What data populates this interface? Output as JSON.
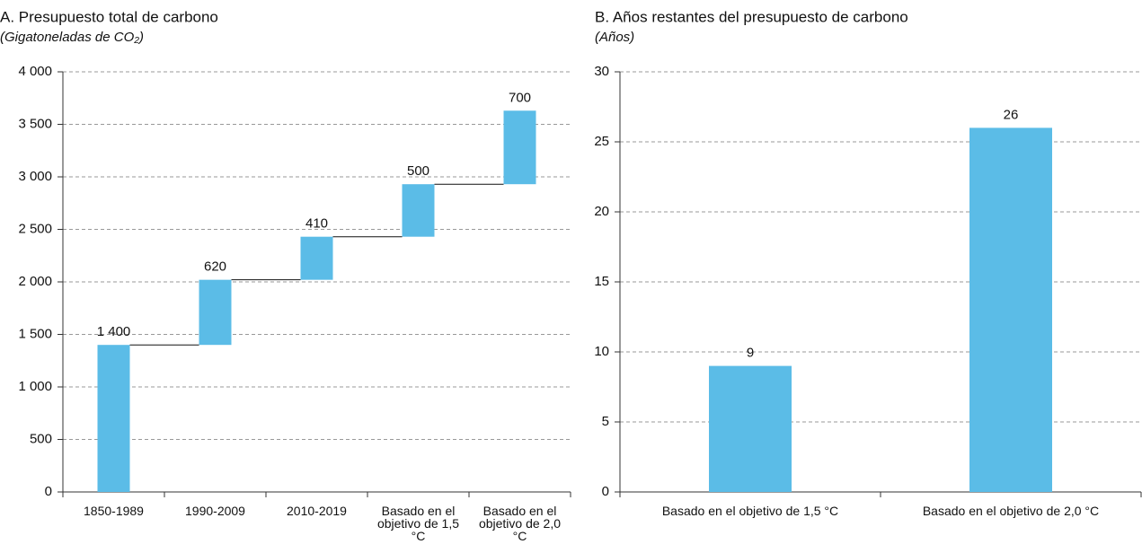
{
  "chart_data": [
    {
      "type": "waterfall",
      "title": "A. Presupuesto total de carbono",
      "subtitle": "(Gigatoneladas de CO₂)",
      "categories": [
        "1850-1989",
        "1990-2009",
        "2010-2019",
        "Basado en el objetivo de 1,5 °C",
        "Basado en el objetivo de 2,0 °C"
      ],
      "values": [
        1400,
        620,
        410,
        500,
        700
      ],
      "value_labels": [
        "1 400",
        "620",
        "410",
        "500",
        "700"
      ],
      "color": "#5bbce7",
      "ylim": [
        0,
        4000
      ],
      "yticks": [
        0,
        500,
        {
          "value": 1000,
          "label": "1 000"
        },
        {
          "value": 1500,
          "label": "1 500"
        },
        {
          "value": 2000,
          "label": "2 000"
        },
        {
          "value": 2500,
          "label": "2 500"
        },
        {
          "value": 3000,
          "label": "3 000"
        },
        {
          "value": 3500,
          "label": "3 500"
        },
        {
          "value": 4000,
          "label": "4 000"
        }
      ],
      "grid": true
    },
    {
      "type": "bar",
      "title": "B. Años restantes del presupuesto de carbono",
      "subtitle": "(Años)",
      "categories": [
        "Basado en el objetivo de 1,5 °C",
        "Basado en el objetivo de 2,0 °C"
      ],
      "values": [
        9,
        26
      ],
      "color": "#5bbce7",
      "ylim": [
        0,
        30
      ],
      "yticks": [
        0,
        5,
        10,
        15,
        20,
        25,
        30
      ],
      "grid": true
    }
  ]
}
